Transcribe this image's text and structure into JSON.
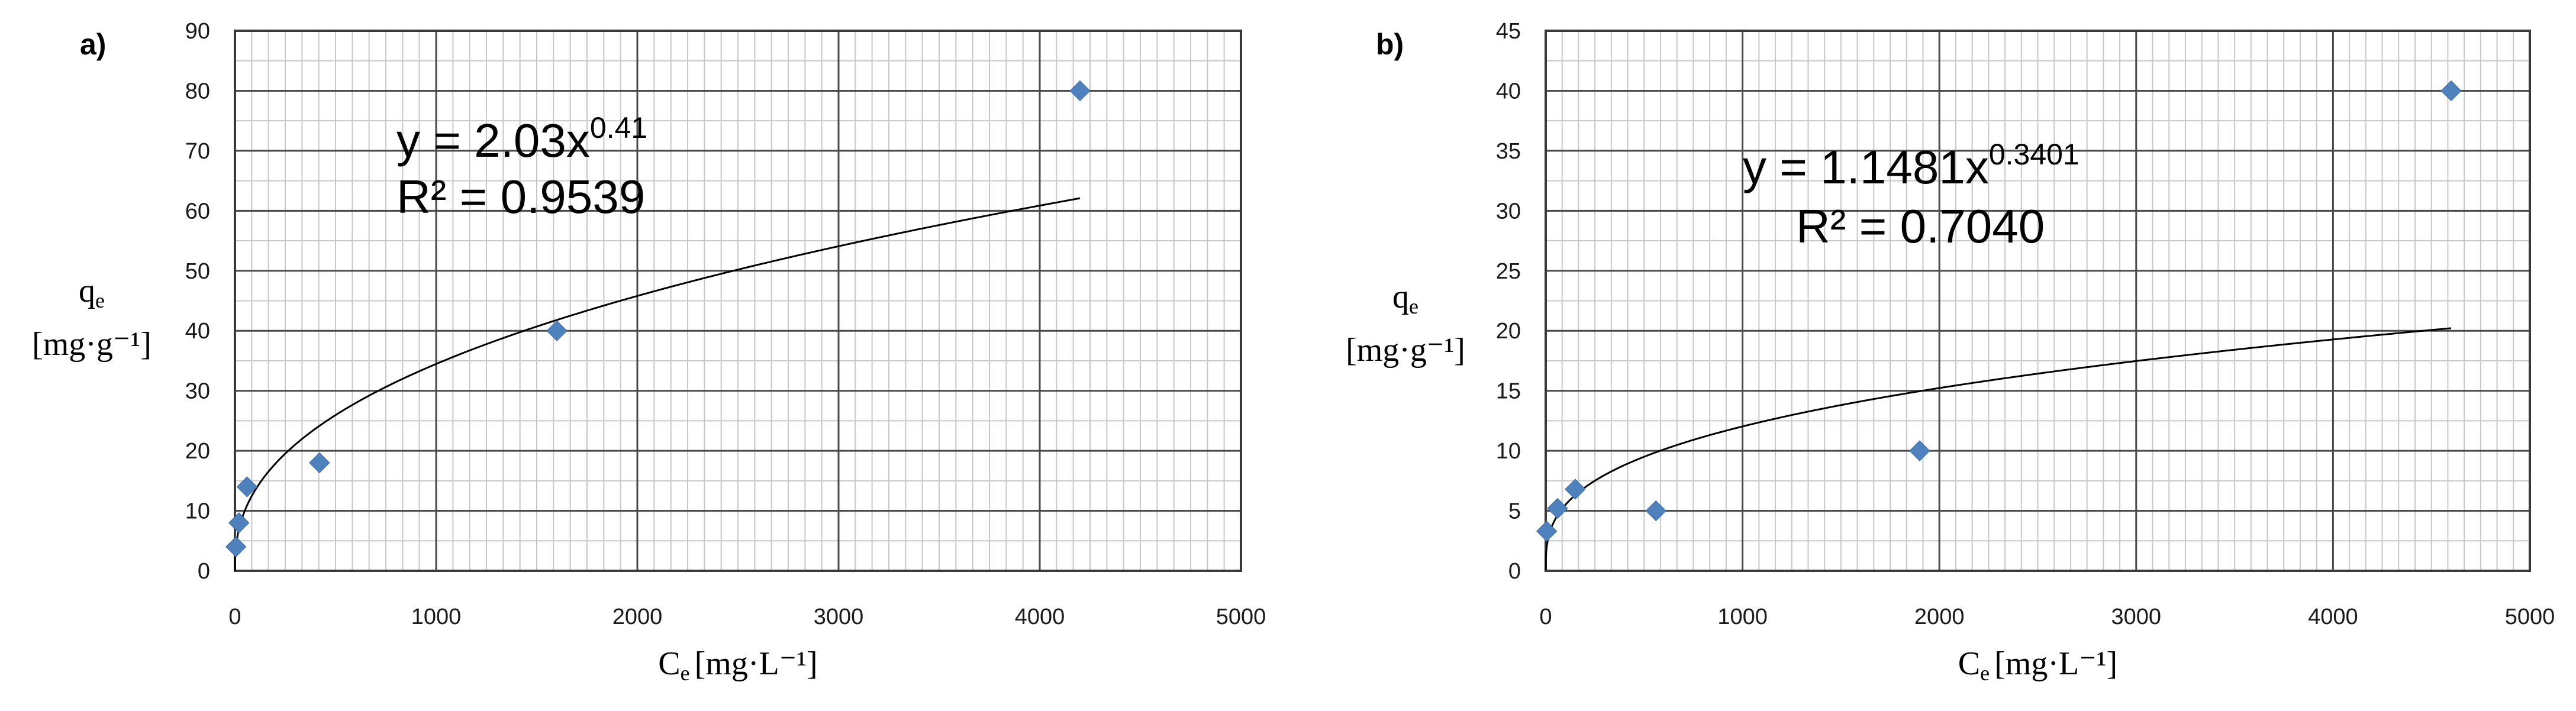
{
  "chart_data": [
    {
      "type": "scatter",
      "panel_label": "a)",
      "xlim": [
        0,
        5000
      ],
      "ylim": [
        0,
        90
      ],
      "xticks": [
        0,
        1000,
        2000,
        3000,
        4000,
        5000
      ],
      "yticks": [
        0,
        10,
        20,
        30,
        40,
        50,
        60,
        70,
        80,
        90
      ],
      "xlabel": {
        "main": "C",
        "sub": "e",
        "unit": "[mg·L⁻¹]"
      },
      "ylabel": {
        "main": "q",
        "sub": "e",
        "unit": "[mg·g⁻¹]"
      },
      "grid": true,
      "points": [
        {
          "x": 5,
          "y": 4
        },
        {
          "x": 20,
          "y": 8
        },
        {
          "x": 60,
          "y": 14
        },
        {
          "x": 420,
          "y": 18
        },
        {
          "x": 1600,
          "y": 40
        },
        {
          "x": 4200,
          "y": 80
        }
      ],
      "fit": {
        "a": 2.03,
        "b": 0.41,
        "x_range": [
          0,
          4200
        ]
      },
      "equation": {
        "base": "y = 2.03x",
        "exponent": "0.41",
        "r2": "R² = 0.9539"
      },
      "marker_color": "#4f81bd"
    },
    {
      "type": "scatter",
      "panel_label": "b)",
      "xlim": [
        0,
        5000
      ],
      "ylim": [
        0,
        45
      ],
      "xticks": [
        0,
        1000,
        2000,
        3000,
        4000,
        5000
      ],
      "yticks": [
        0,
        5,
        10,
        15,
        20,
        25,
        30,
        35,
        40,
        45
      ],
      "xlabel": {
        "main": "C",
        "sub": "e",
        "unit": "[mg·L⁻¹]"
      },
      "ylabel": {
        "main": "q",
        "sub": "e",
        "unit": "[mg·g⁻¹]"
      },
      "grid": true,
      "points": [
        {
          "x": 5,
          "y": 3.3
        },
        {
          "x": 60,
          "y": 5.2
        },
        {
          "x": 150,
          "y": 6.8
        },
        {
          "x": 560,
          "y": 5
        },
        {
          "x": 1900,
          "y": 10
        },
        {
          "x": 4600,
          "y": 40
        }
      ],
      "fit": {
        "a": 1.1481,
        "b": 0.3401,
        "x_range": [
          0,
          4600
        ]
      },
      "equation": {
        "base": "y = 1.1481x",
        "exponent": "0.3401",
        "r2": "R² = 0.7040"
      },
      "marker_color": "#4f81bd"
    }
  ]
}
